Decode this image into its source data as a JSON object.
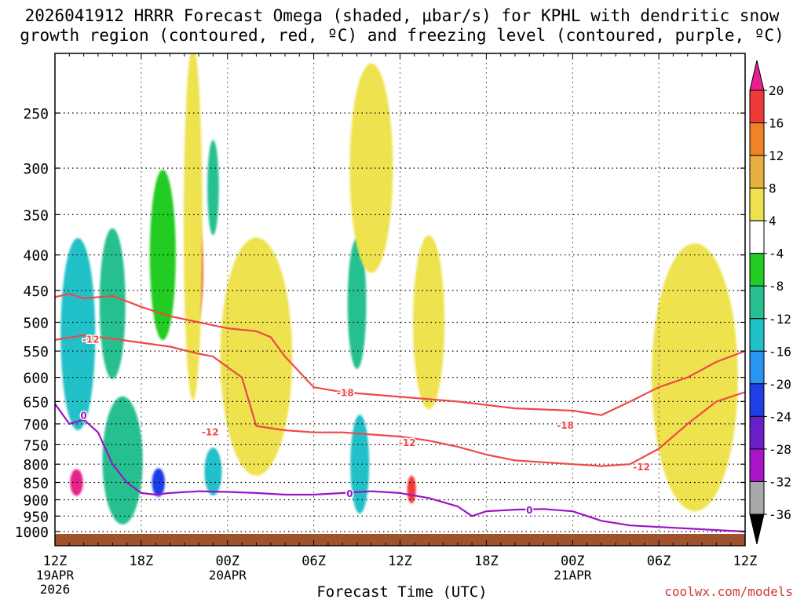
{
  "title_line1": "2026041912 HRRR Forecast Omega (shaded, μbar/s) for KPHL with dendritic snow",
  "title_line2": "growth region (contoured, red, ºC) and freezing level (contoured, purple, ºC)",
  "x_axis_title": "Forecast Time (UTC)",
  "credit": "coolwx.com/models",
  "chart_data": {
    "type": "contour-time-height",
    "ylabel": "Pressure (hPa)",
    "y_ticks": [
      250,
      300,
      350,
      400,
      450,
      500,
      550,
      600,
      650,
      700,
      750,
      800,
      850,
      900,
      950,
      1000
    ],
    "y_range": [
      1020,
      200
    ],
    "x_range_hours": [
      0,
      48
    ],
    "x_ticks": [
      {
        "h": 0,
        "label": "12Z",
        "date": "19APR",
        "year": "2026"
      },
      {
        "h": 6,
        "label": "18Z"
      },
      {
        "h": 12,
        "label": "00Z",
        "date": "20APR"
      },
      {
        "h": 18,
        "label": "06Z"
      },
      {
        "h": 24,
        "label": "12Z"
      },
      {
        "h": 30,
        "label": "18Z"
      },
      {
        "h": 36,
        "label": "00Z",
        "date": "21APR"
      },
      {
        "h": 42,
        "label": "06Z"
      },
      {
        "h": 48,
        "label": "12Z"
      }
    ],
    "colorbar": {
      "labels": [
        "20",
        "16",
        "12",
        "8",
        "4",
        "-4",
        "-8",
        "-12",
        "-16",
        "-20",
        "-24",
        "-28",
        "-32",
        "-36"
      ],
      "bins": [
        {
          "range": "> 20",
          "color": "#e8208c"
        },
        {
          "range": "16 to 20",
          "color": "#f03a3a"
        },
        {
          "range": "12 to 16",
          "color": "#f08228"
        },
        {
          "range": "8 to 12",
          "color": "#e8b040"
        },
        {
          "range": "4 to 8",
          "color": "#eee250"
        },
        {
          "range": "-4 to 4",
          "color": "#ffffff"
        },
        {
          "range": "-8 to -4",
          "color": "#22cc22"
        },
        {
          "range": "-12 to -8",
          "color": "#28c090"
        },
        {
          "range": "-16 to -12",
          "color": "#20c0c8"
        },
        {
          "range": "-20 to -16",
          "color": "#2896f0"
        },
        {
          "range": "-24 to -20",
          "color": "#1e3ee6"
        },
        {
          "range": "-28 to -24",
          "color": "#6a1ec8"
        },
        {
          "range": "-32 to -28",
          "color": "#a814c8"
        },
        {
          "range": "-36 to -32",
          "color": "#a8a8a8"
        },
        {
          "range": "< -36",
          "color": "#000000"
        }
      ]
    },
    "omega_cells": [
      {
        "h": 1.5,
        "p": 850,
        "dh": 0.9,
        "dp": 75,
        "value": 22
      },
      {
        "h": 1.7,
        "p": 470,
        "dh": 1.3,
        "dp": 120,
        "value": -22
      },
      {
        "h": 1.6,
        "p": 520,
        "dh": 2.4,
        "dp": 320,
        "value": -12
      },
      {
        "h": 4.0,
        "p": 440,
        "dh": 0.9,
        "dp": 100,
        "value": -18
      },
      {
        "h": 4.0,
        "p": 470,
        "dh": 1.8,
        "dp": 230,
        "value": -10
      },
      {
        "h": 4.9,
        "p": 760,
        "dh": 0.6,
        "dp": 60,
        "value": -38
      },
      {
        "h": 4.9,
        "p": 780,
        "dh": 1.2,
        "dp": 160,
        "value": -26
      },
      {
        "h": 4.7,
        "p": 790,
        "dh": 2.8,
        "dp": 330,
        "value": -8
      },
      {
        "h": 7.2,
        "p": 850,
        "dh": 0.9,
        "dp": 80,
        "value": -20
      },
      {
        "h": 7.5,
        "p": 400,
        "dh": 1.8,
        "dp": 220,
        "value": -6
      },
      {
        "h": 9.8,
        "p": 420,
        "dh": 1.0,
        "dp": 150,
        "value": 18
      },
      {
        "h": 9.6,
        "p": 360,
        "dh": 1.3,
        "dp": 380,
        "value": 6
      },
      {
        "h": 11.0,
        "p": 320,
        "dh": 0.8,
        "dp": 100,
        "value": -8
      },
      {
        "h": 11.0,
        "p": 820,
        "dh": 1.2,
        "dp": 130,
        "value": -12
      },
      {
        "h": 14.5,
        "p": 700,
        "dh": 2.2,
        "dp": 180,
        "value": 14
      },
      {
        "h": 14.0,
        "p": 560,
        "dh": 5.0,
        "dp": 420,
        "value": 6
      },
      {
        "h": 21.2,
        "p": 800,
        "dh": 1.3,
        "dp": 260,
        "value": -14
      },
      {
        "h": 21.0,
        "p": 470,
        "dh": 1.3,
        "dp": 200,
        "value": -8
      },
      {
        "h": 22.0,
        "p": 300,
        "dh": 3.0,
        "dp": 200,
        "value": 6
      },
      {
        "h": 24.8,
        "p": 870,
        "dh": 0.6,
        "dp": 80,
        "value": 18
      },
      {
        "h": 26.0,
        "p": 500,
        "dh": 2.2,
        "dp": 280,
        "value": 8
      },
      {
        "h": 45.5,
        "p": 580,
        "dh": 3.0,
        "dp": 300,
        "value": 10
      },
      {
        "h": 44.5,
        "p": 600,
        "dh": 6.0,
        "dp": 500,
        "value": 5
      }
    ],
    "series": [
      {
        "name": "-12 ºC isotherm (upper)",
        "color": "#f04848",
        "x": [
          0,
          1,
          2,
          4,
          6,
          8,
          10,
          11,
          12,
          14,
          15,
          16,
          18,
          20,
          24,
          28,
          32,
          36,
          38,
          40,
          42,
          44,
          46,
          48
        ],
        "y": [
          460,
          455,
          462,
          458,
          475,
          490,
          500,
          505,
          510,
          515,
          525,
          560,
          620,
          630,
          640,
          650,
          665,
          670,
          680,
          650,
          620,
          600,
          570,
          550
        ]
      },
      {
        "name": "-12 ºC isotherm (lower)",
        "color": "#f04848",
        "x": [
          0,
          2,
          4,
          6,
          8,
          10,
          11,
          12,
          13,
          14,
          16,
          18,
          20,
          22,
          24,
          26,
          28,
          30,
          32,
          34,
          36,
          38,
          40,
          42,
          44,
          46,
          48
        ],
        "y": [
          530,
          522,
          528,
          535,
          542,
          555,
          560,
          580,
          600,
          705,
          715,
          720,
          720,
          725,
          730,
          740,
          755,
          775,
          790,
          795,
          800,
          805,
          800,
          760,
          700,
          650,
          630
        ]
      },
      {
        "name": "0 ºC freezing level",
        "color": "#9a14c8",
        "x": [
          0,
          1,
          2,
          3,
          4,
          5,
          6,
          7,
          8,
          10,
          12,
          14,
          16,
          18,
          20,
          22,
          24,
          26,
          28,
          29,
          30,
          32,
          34,
          36,
          38,
          40,
          42,
          44,
          46,
          48
        ],
        "y": [
          655,
          700,
          690,
          720,
          800,
          850,
          880,
          885,
          880,
          875,
          877,
          880,
          885,
          885,
          880,
          875,
          880,
          895,
          920,
          950,
          935,
          930,
          928,
          935,
          965,
          980,
          985,
          990,
          995,
          1000
        ]
      }
    ],
    "contour_labels": [
      {
        "h": 2.5,
        "p": 528,
        "text": "-12",
        "color": "#f04848"
      },
      {
        "h": 10.8,
        "p": 718,
        "text": "-12",
        "color": "#f04848"
      },
      {
        "h": 20.2,
        "p": 630,
        "text": "-18",
        "color": "#f04848"
      },
      {
        "h": 24.5,
        "p": 743,
        "text": "-12",
        "color": "#f04848"
      },
      {
        "h": 35.5,
        "p": 702,
        "text": "-18",
        "color": "#f04848"
      },
      {
        "h": 40.8,
        "p": 806,
        "text": "-12",
        "color": "#f04848"
      },
      {
        "h": 2.0,
        "p": 680,
        "text": "0",
        "color": "#9a14c8"
      },
      {
        "h": 20.5,
        "p": 880,
        "text": "0",
        "color": "#9a14c8"
      },
      {
        "h": 33.0,
        "p": 930,
        "text": "0",
        "color": "#9a14c8"
      }
    ]
  }
}
